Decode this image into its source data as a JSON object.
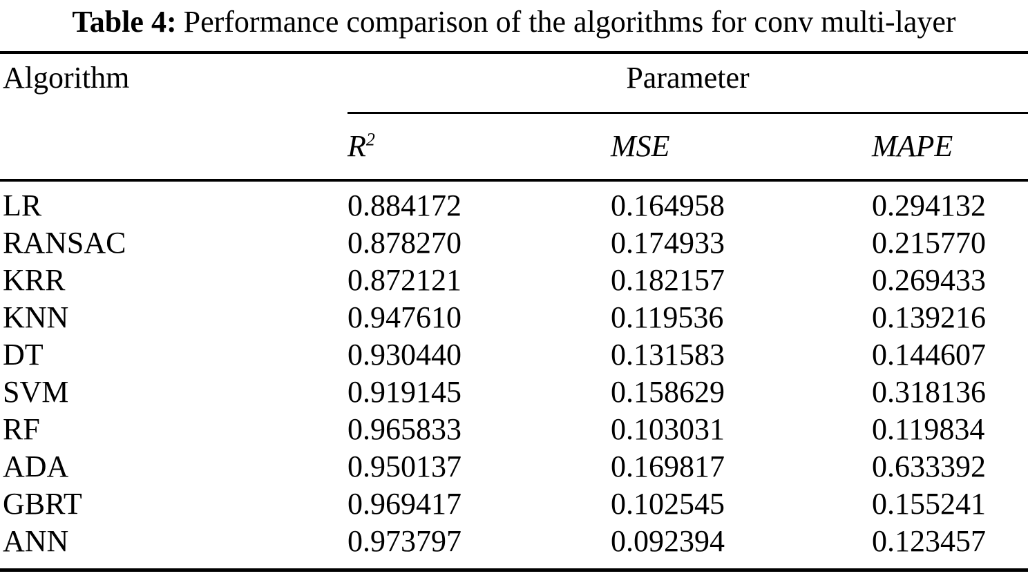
{
  "title": {
    "label": "Table 4:",
    "text": "Performance comparison of the algorithms for conv multi-layer"
  },
  "table": {
    "col1_header": "Algorithm",
    "group_header": "Parameter",
    "param_headers": [
      {
        "base": "R",
        "sup": "2"
      },
      {
        "base": "MSE",
        "sup": ""
      },
      {
        "base": "MAPE",
        "sup": ""
      }
    ],
    "rows": [
      {
        "algorithm": "LR",
        "r2": "0.884172",
        "mse": "0.164958",
        "mape": "0.294132"
      },
      {
        "algorithm": "RANSAC",
        "r2": "0.878270",
        "mse": "0.174933",
        "mape": "0.215770"
      },
      {
        "algorithm": "KRR",
        "r2": "0.872121",
        "mse": "0.182157",
        "mape": "0.269433"
      },
      {
        "algorithm": "KNN",
        "r2": "0.947610",
        "mse": "0.119536",
        "mape": "0.139216"
      },
      {
        "algorithm": "DT",
        "r2": "0.930440",
        "mse": "0.131583",
        "mape": "0.144607"
      },
      {
        "algorithm": "SVM",
        "r2": "0.919145",
        "mse": "0.158629",
        "mape": "0.318136"
      },
      {
        "algorithm": "RF",
        "r2": "0.965833",
        "mse": "0.103031",
        "mape": "0.119834"
      },
      {
        "algorithm": "ADA",
        "r2": "0.950137",
        "mse": "0.169817",
        "mape": "0.633392"
      },
      {
        "algorithm": "GBRT",
        "r2": "0.969417",
        "mse": "0.102545",
        "mape": "0.155241"
      },
      {
        "algorithm": "ANN",
        "r2": "0.973797",
        "mse": "0.092394",
        "mape": "0.123457"
      }
    ]
  },
  "chart_data": {
    "type": "table",
    "title": "Table 4: Performance comparison of the algorithms for conv multi-layer",
    "columns": [
      "Algorithm",
      "R2",
      "MSE",
      "MAPE"
    ],
    "rows": [
      [
        "LR",
        0.884172,
        0.164958,
        0.294132
      ],
      [
        "RANSAC",
        0.87827,
        0.174933,
        0.21577
      ],
      [
        "KRR",
        0.872121,
        0.182157,
        0.269433
      ],
      [
        "KNN",
        0.94761,
        0.119536,
        0.139216
      ],
      [
        "DT",
        0.93044,
        0.131583,
        0.144607
      ],
      [
        "SVM",
        0.919145,
        0.158629,
        0.318136
      ],
      [
        "RF",
        0.965833,
        0.103031,
        0.119834
      ],
      [
        "ADA",
        0.950137,
        0.169817,
        0.633392
      ],
      [
        "GBRT",
        0.969417,
        0.102545,
        0.155241
      ],
      [
        "ANN",
        0.973797,
        0.092394,
        0.123457
      ]
    ]
  }
}
